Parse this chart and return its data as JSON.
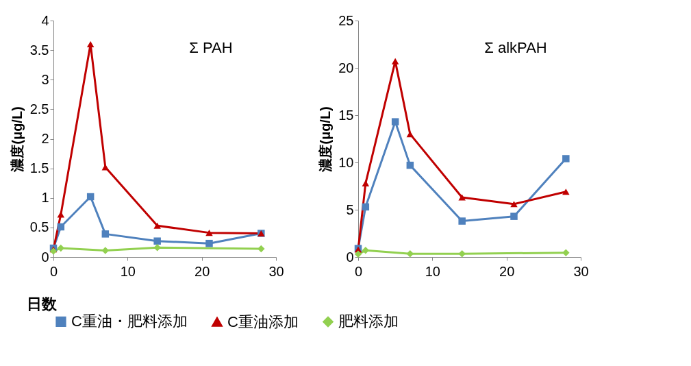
{
  "chart_data": [
    {
      "type": "line",
      "xlabel": "日数",
      "ylabel": "濃度(μg/L)",
      "annotations": [
        "Σ PAH"
      ],
      "x": [
        0,
        1,
        5,
        7,
        14,
        21,
        28
      ],
      "xlim": [
        0,
        30
      ],
      "xticks": [
        0,
        10,
        20,
        30
      ],
      "ylim": [
        0,
        4
      ],
      "yticks": [
        0,
        0.5,
        1,
        1.5,
        2,
        2.5,
        3,
        3.5,
        4
      ],
      "grid": false,
      "legend": "bottom",
      "series": [
        {
          "name": "C重油・肥料添加",
          "color": "#4f81bd",
          "marker": "square",
          "values": [
            0.15,
            0.51,
            1.02,
            0.39,
            0.27,
            0.23,
            0.4
          ]
        },
        {
          "name": "C重油添加",
          "color": "#c00000",
          "marker": "triangle",
          "values": [
            0.13,
            0.72,
            3.6,
            1.52,
            0.53,
            0.41,
            0.4
          ]
        },
        {
          "name": "肥料添加",
          "color": "#92d050",
          "marker": "diamond",
          "x": [
            0,
            1,
            7,
            14,
            28
          ],
          "values": [
            0.1,
            0.15,
            0.11,
            0.16,
            0.14
          ]
        }
      ]
    },
    {
      "type": "line",
      "ylabel": "濃度(μg/L)",
      "annotations": [
        "Σ alkPAH"
      ],
      "x": [
        0,
        1,
        5,
        7,
        14,
        21,
        28
      ],
      "xlim": [
        0,
        30
      ],
      "xticks": [
        0,
        10,
        20,
        30
      ],
      "ylim": [
        0,
        25
      ],
      "yticks": [
        0,
        5,
        10,
        15,
        20,
        25
      ],
      "grid": false,
      "legend": "bottom",
      "series": [
        {
          "name": "C重油・肥料添加",
          "color": "#4f81bd",
          "marker": "square",
          "values": [
            0.9,
            5.3,
            14.3,
            9.7,
            3.8,
            4.3,
            10.4
          ]
        },
        {
          "name": "C重油添加",
          "color": "#c00000",
          "marker": "triangle",
          "values": [
            0.8,
            7.8,
            20.7,
            13.0,
            6.3,
            5.6,
            6.9
          ]
        },
        {
          "name": "肥料添加",
          "color": "#92d050",
          "marker": "diamond",
          "x": [
            0,
            1,
            7,
            14,
            28
          ],
          "values": [
            0.3,
            0.7,
            0.35,
            0.35,
            0.45
          ]
        }
      ]
    }
  ]
}
